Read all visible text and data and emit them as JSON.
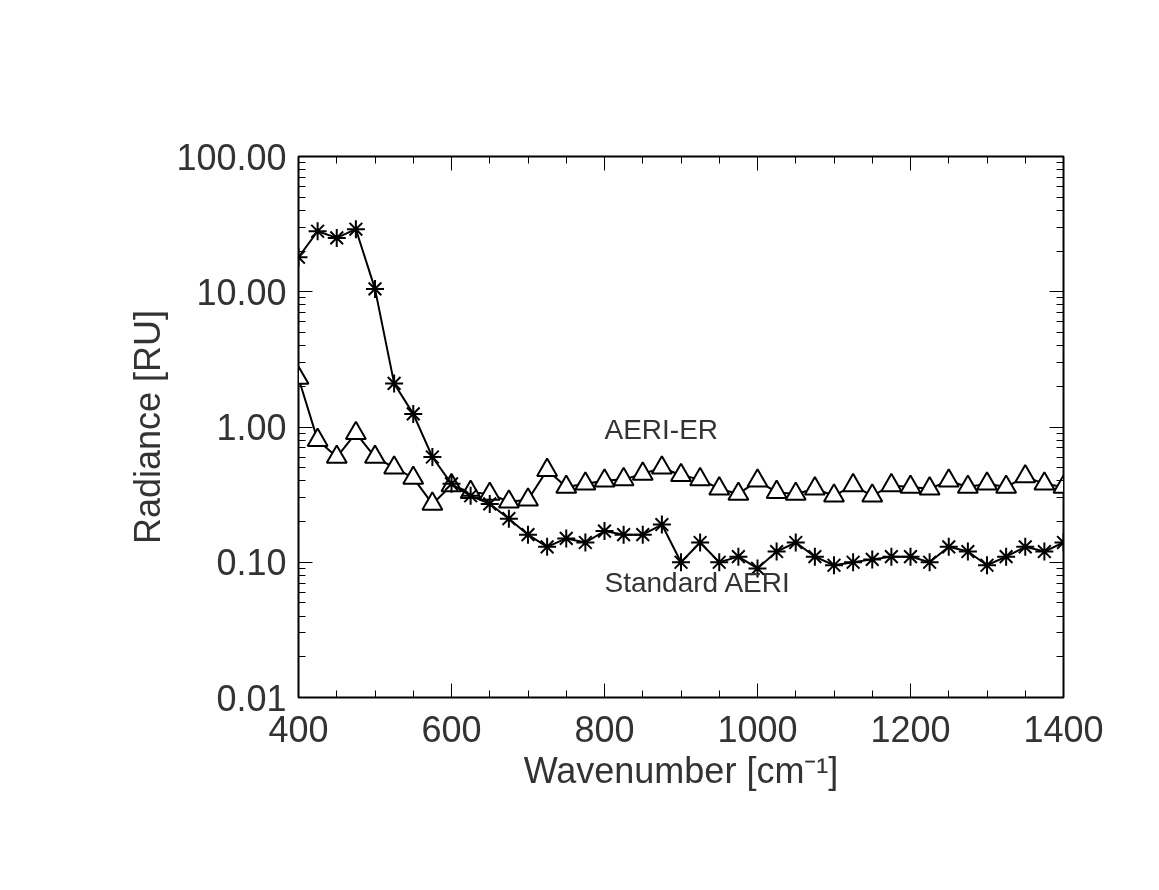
{
  "chart_data": {
    "type": "line",
    "xlabel": "Wavenumber [cm⁻¹]",
    "ylabel": "Radiance [RU]",
    "x": [
      400,
      425,
      450,
      475,
      500,
      525,
      550,
      575,
      600,
      625,
      650,
      675,
      700,
      725,
      750,
      775,
      800,
      825,
      850,
      875,
      900,
      925,
      950,
      975,
      1000,
      1025,
      1050,
      1075,
      1100,
      1125,
      1150,
      1175,
      1200,
      1225,
      1250,
      1275,
      1300,
      1325,
      1350,
      1375,
      1400
    ],
    "series": [
      {
        "name": "AERI-ER",
        "color": "#000000",
        "marker": "triangle",
        "values": [
          2.3,
          0.8,
          0.6,
          0.9,
          0.6,
          0.5,
          0.42,
          0.27,
          0.37,
          0.33,
          0.32,
          0.28,
          0.29,
          0.48,
          0.36,
          0.38,
          0.4,
          0.41,
          0.45,
          0.5,
          0.44,
          0.41,
          0.35,
          0.32,
          0.4,
          0.33,
          0.32,
          0.35,
          0.31,
          0.37,
          0.31,
          0.37,
          0.36,
          0.35,
          0.4,
          0.36,
          0.38,
          0.36,
          0.43,
          0.38,
          0.36
        ]
      },
      {
        "name": "Standard AERI",
        "color": "#000000",
        "marker": "cross",
        "values": [
          18,
          28,
          25,
          29,
          10.5,
          2.1,
          1.25,
          0.6,
          0.38,
          0.31,
          0.27,
          0.21,
          0.16,
          0.13,
          0.15,
          0.14,
          0.17,
          0.16,
          0.16,
          0.19,
          0.1,
          0.14,
          0.1,
          0.11,
          0.09,
          0.12,
          0.14,
          0.11,
          0.095,
          0.1,
          0.105,
          0.11,
          0.11,
          0.1,
          0.13,
          0.12,
          0.095,
          0.11,
          0.13,
          0.12,
          0.14
        ]
      }
    ],
    "log": "y",
    "xlim": [
      400,
      1400
    ],
    "xticks": [
      400,
      600,
      800,
      1000,
      1200,
      1400
    ],
    "ylim": [
      0.01,
      100
    ],
    "yticks": [
      {
        "value": 0.01,
        "label": "0.01"
      },
      {
        "value": 0.1,
        "label": "0.10"
      },
      {
        "value": 1,
        "label": "1.00"
      },
      {
        "value": 10,
        "label": "10.00"
      },
      {
        "value": 100,
        "label": "100.00"
      }
    ],
    "grid": false,
    "line_style": "solid"
  }
}
